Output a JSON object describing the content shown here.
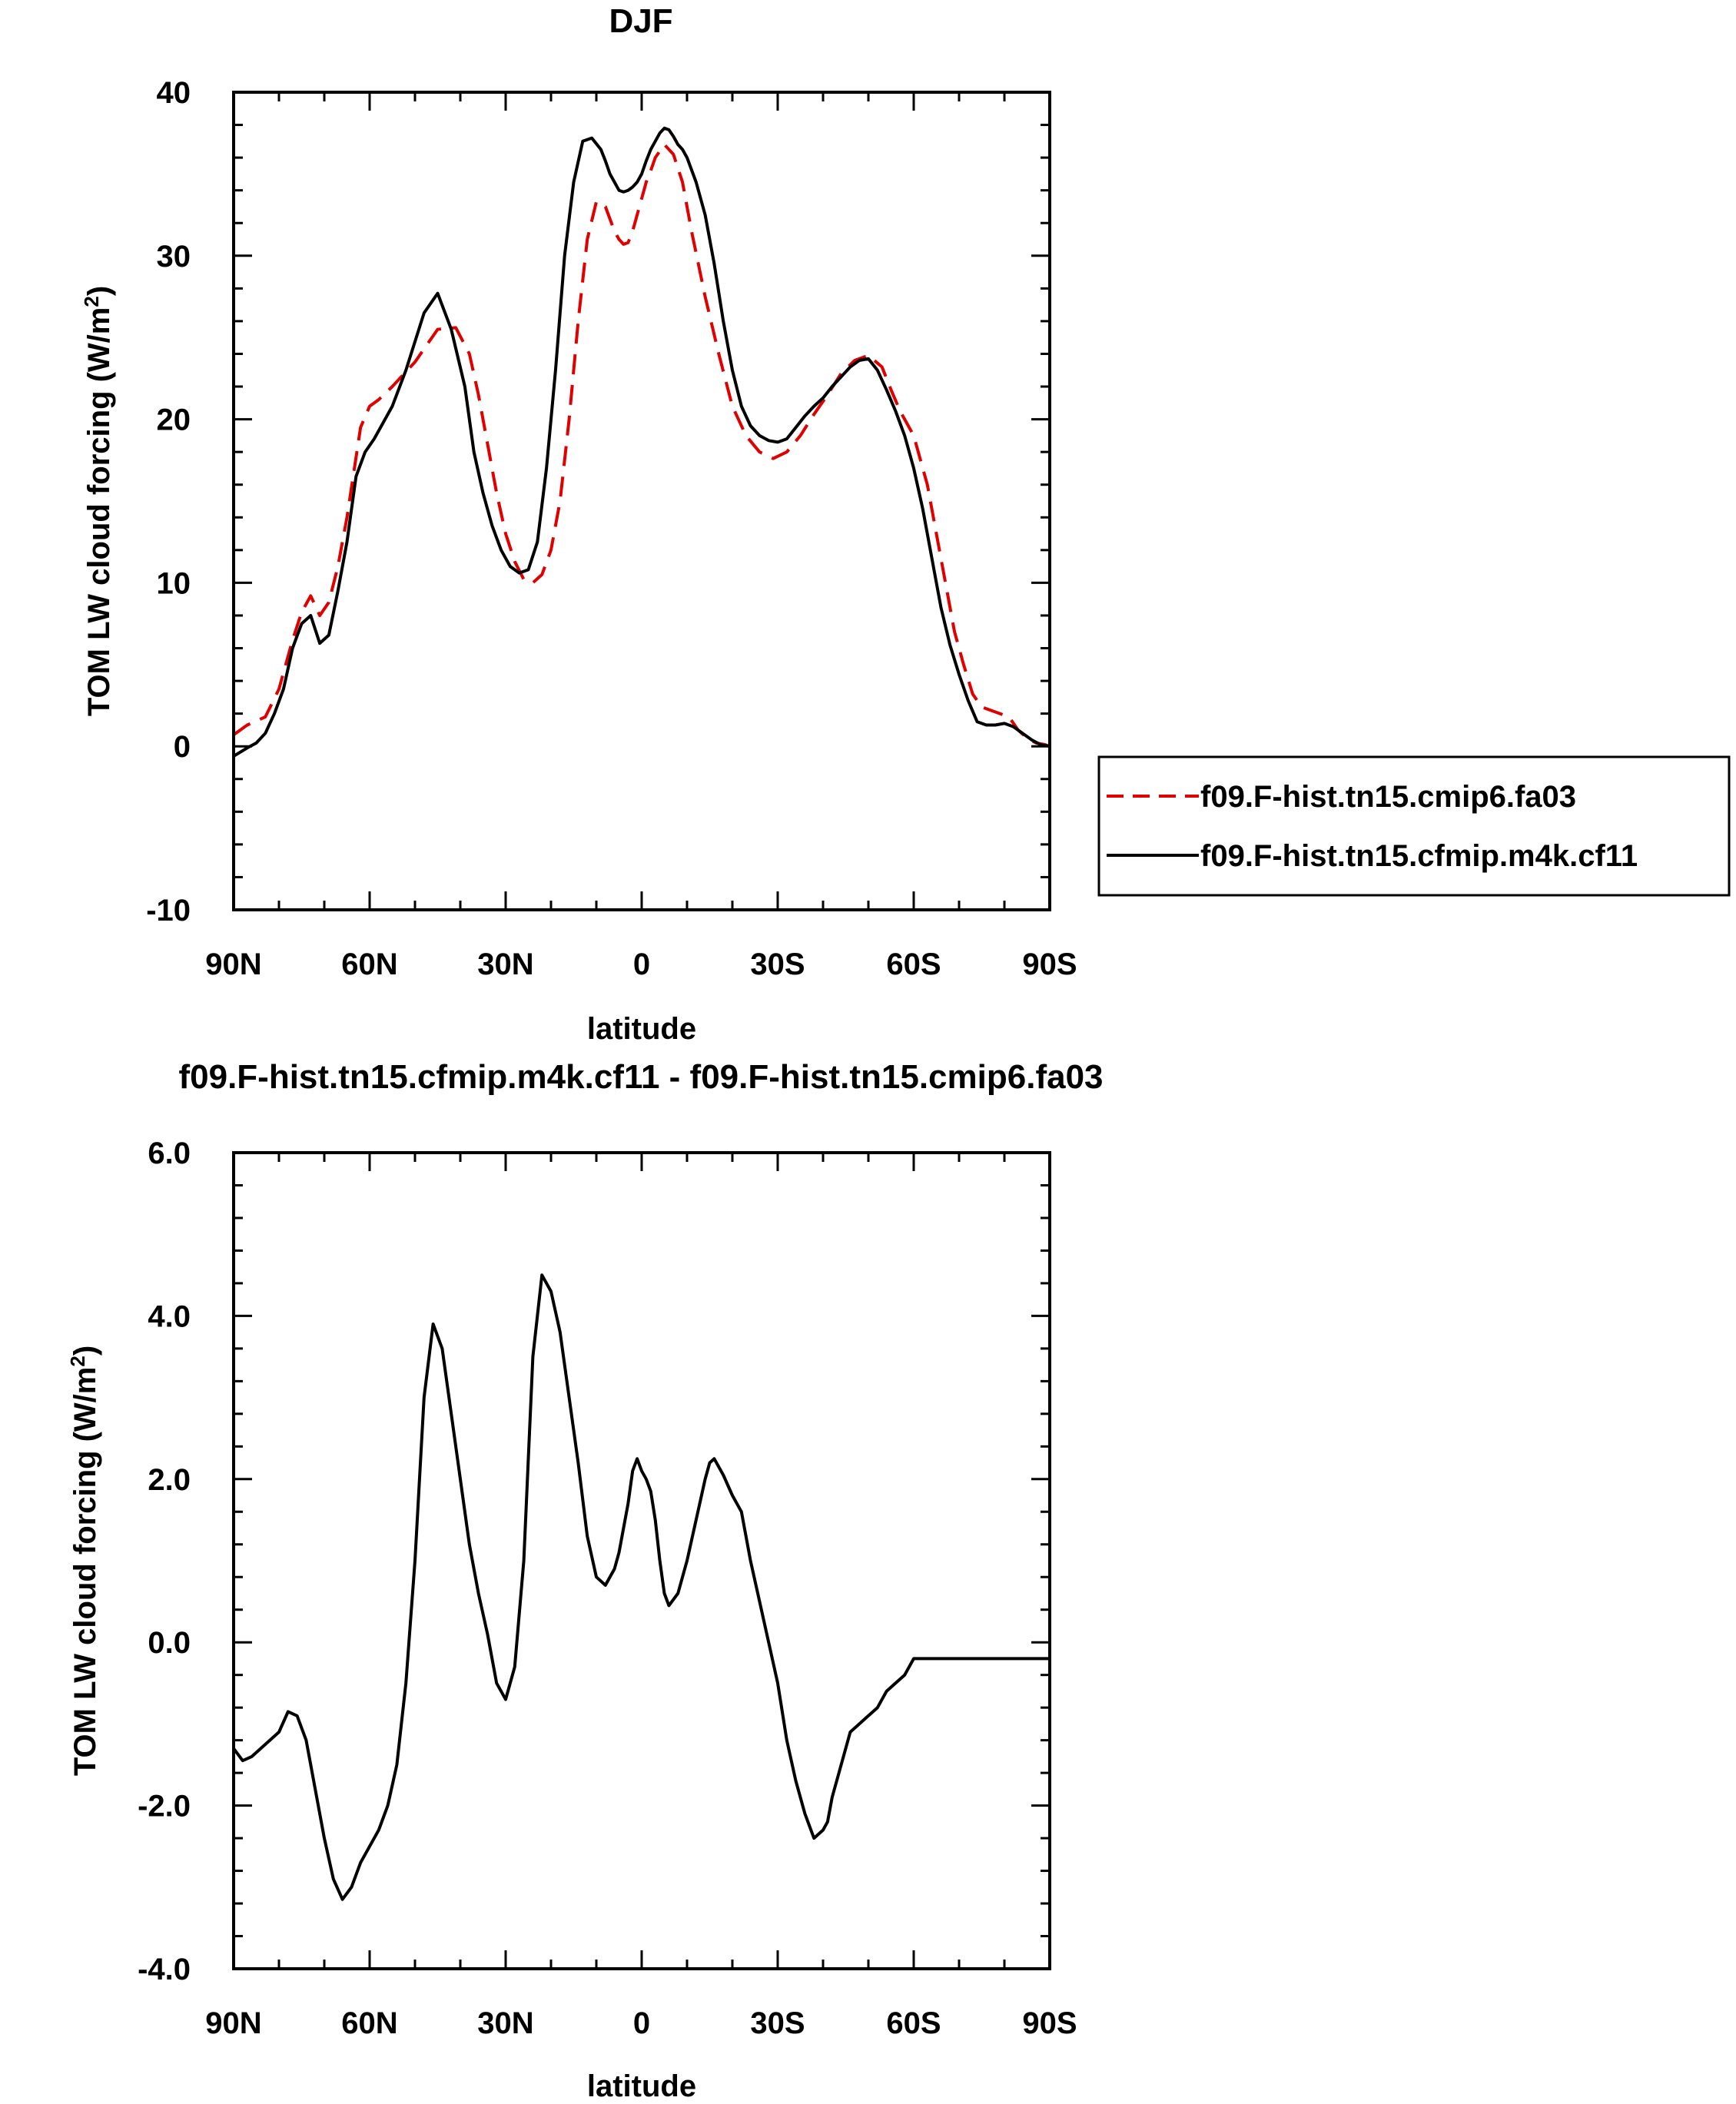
{
  "chart_data": [
    {
      "type": "line",
      "title": "DJF",
      "xlabel": "latitude",
      "ylabel": "TOM LW cloud forcing (W/m2)",
      "ylabel_parts": {
        "main": "TOM LW cloud forcing (W/m",
        "sup": "2",
        "tail": ")"
      },
      "xlim": [
        -90,
        90
      ],
      "ylim": [
        -10,
        40
      ],
      "x_ticks": [
        -90,
        -60,
        -30,
        0,
        30,
        60,
        90
      ],
      "x_tick_labels": [
        "90N",
        "60N",
        "30N",
        "0",
        "30S",
        "60S",
        "90S"
      ],
      "y_ticks": [
        -10,
        0,
        10,
        20,
        30,
        40
      ],
      "y_tick_labels": [
        "-10",
        "0",
        "10",
        "20",
        "30",
        "40"
      ],
      "legend": {
        "position": "right-middle",
        "entries": [
          "f09.F-hist.tn15.cmip6.fa03",
          "f09.F-hist.tn15.cfmip.m4k.cf11"
        ]
      },
      "series": [
        {
          "name": "f09.F-hist.tn15.cmip6.fa03",
          "color": "#e00000",
          "dash": "dashed",
          "x": [
            -90,
            -87,
            -83,
            -80,
            -77,
            -75,
            -73,
            -71,
            -69,
            -67,
            -65,
            -62,
            -60,
            -58,
            -55,
            -50,
            -45,
            -41,
            -38,
            -36,
            -34,
            -32,
            -30,
            -28,
            -26,
            -24,
            -22,
            -20,
            -18,
            -16,
            -14,
            -12,
            -10,
            -8,
            -6,
            -5,
            -4,
            -3,
            -2,
            -1,
            0,
            1,
            2,
            3,
            5,
            7,
            9,
            11,
            14,
            17,
            20,
            23,
            26,
            29,
            32,
            35,
            38,
            41,
            44,
            47,
            50,
            53,
            55,
            57,
            60,
            63,
            65,
            67,
            69,
            71,
            73,
            75,
            77,
            79,
            81,
            83,
            85,
            87,
            89,
            90
          ],
          "y": [
            0.7,
            1.3,
            1.8,
            3.5,
            6.5,
            8.2,
            9.2,
            8.0,
            8.8,
            11.0,
            14.0,
            19.5,
            20.8,
            21.2,
            22.0,
            23.5,
            25.5,
            25.6,
            24.0,
            21.5,
            18.5,
            15.5,
            13.0,
            11.3,
            10.2,
            10.0,
            10.5,
            12.0,
            15.0,
            20.0,
            26.0,
            31.0,
            33.3,
            33.0,
            31.5,
            31.0,
            30.7,
            30.8,
            31.5,
            32.5,
            33.5,
            34.5,
            35.2,
            36.0,
            36.8,
            36.2,
            34.5,
            31.5,
            27.5,
            24.0,
            20.8,
            19.0,
            18.0,
            17.6,
            18.0,
            19.0,
            20.3,
            21.5,
            22.8,
            23.6,
            23.9,
            23.2,
            21.8,
            20.5,
            19.0,
            16.0,
            13.0,
            10.0,
            7.0,
            5.0,
            3.2,
            2.4,
            2.2,
            2.0,
            1.8,
            1.0,
            0.5,
            0.2,
            0.1,
            0.0
          ]
        },
        {
          "name": "f09.F-hist.tn15.cfmip.m4k.cf11",
          "color": "#000000",
          "dash": "solid",
          "x": [
            -90,
            -87,
            -85,
            -83,
            -81,
            -79,
            -77,
            -75,
            -73,
            -71,
            -69,
            -67,
            -65,
            -63,
            -61,
            -59,
            -57,
            -55,
            -52,
            -48,
            -45,
            -42,
            -39,
            -37,
            -35,
            -33,
            -31,
            -29,
            -27,
            -25,
            -23,
            -21,
            -19,
            -17,
            -15,
            -13,
            -11,
            -9,
            -8,
            -7,
            -6,
            -5,
            -4,
            -3,
            -2,
            -1,
            0,
            1,
            2,
            3,
            4,
            5,
            6,
            7,
            8,
            9,
            10,
            12,
            14,
            16,
            18,
            20,
            22,
            24,
            26,
            28,
            30,
            32,
            34,
            36,
            38,
            40,
            42,
            44,
            46,
            48,
            50,
            52,
            54,
            56,
            58,
            60,
            62,
            64,
            66,
            68,
            70,
            72,
            74,
            76,
            78,
            80,
            82,
            84,
            86,
            88,
            90
          ],
          "y": [
            -0.6,
            -0.1,
            0.2,
            0.8,
            2.0,
            3.5,
            6.0,
            7.5,
            8.0,
            6.3,
            6.8,
            9.5,
            12.5,
            16.5,
            18.0,
            18.8,
            19.8,
            20.8,
            23.0,
            26.5,
            27.7,
            25.5,
            22.0,
            18.0,
            15.5,
            13.5,
            12.0,
            11.0,
            10.6,
            10.8,
            12.5,
            17.0,
            23.0,
            30.0,
            34.5,
            37.0,
            37.2,
            36.5,
            35.8,
            35.0,
            34.5,
            34.0,
            33.9,
            34.0,
            34.2,
            34.5,
            35.0,
            35.8,
            36.5,
            37.0,
            37.5,
            37.8,
            37.7,
            37.3,
            36.8,
            36.5,
            36.0,
            34.5,
            32.5,
            29.5,
            26.0,
            23.0,
            20.8,
            19.6,
            19.0,
            18.7,
            18.6,
            18.8,
            19.5,
            20.2,
            20.8,
            21.3,
            22.0,
            22.6,
            23.2,
            23.6,
            23.7,
            23.0,
            21.8,
            20.5,
            19.0,
            17.0,
            14.5,
            11.5,
            8.5,
            6.2,
            4.4,
            2.8,
            1.5,
            1.3,
            1.3,
            1.4,
            1.2,
            0.8,
            0.4,
            0.1,
            0.0
          ]
        }
      ]
    },
    {
      "type": "line",
      "title": "f09.F-hist.tn15.cfmip.m4k.cf11 - f09.F-hist.tn15.cmip6.fa03",
      "xlabel": "latitude",
      "ylabel": "TOM LW cloud forcing (W/m2)",
      "ylabel_parts": {
        "main": "TOM LW cloud forcing (W/m",
        "sup": "2",
        "tail": ")"
      },
      "xlim": [
        -90,
        90
      ],
      "ylim": [
        -4,
        6
      ],
      "x_ticks": [
        -90,
        -60,
        -30,
        0,
        30,
        60,
        90
      ],
      "x_tick_labels": [
        "90N",
        "60N",
        "30N",
        "0",
        "30S",
        "60S",
        "90S"
      ],
      "y_ticks": [
        -4,
        -2,
        0,
        2,
        4,
        6
      ],
      "y_tick_labels": [
        "-4.0",
        "-2.0",
        "0.0",
        "2.0",
        "4.0",
        "6.0"
      ],
      "series": [
        {
          "name": "f09.F-hist.tn15.cfmip.m4k.cf11 - f09.F-hist.tn15.cmip6.fa03",
          "color": "#000000",
          "dash": "solid",
          "x": [
            -90,
            -88,
            -86,
            -84,
            -82,
            -80,
            -78,
            -76,
            -74,
            -72,
            -70,
            -68,
            -66,
            -64,
            -62,
            -60,
            -58,
            -56,
            -54,
            -52,
            -50,
            -48,
            -46,
            -44,
            -42,
            -40,
            -38,
            -36,
            -34,
            -33,
            -32,
            -30,
            -28,
            -26,
            -24,
            -22,
            -20,
            -18,
            -16,
            -14,
            -12,
            -10,
            -8,
            -6,
            -5,
            -4,
            -3,
            -2,
            -1,
            0,
            1,
            2,
            3,
            4,
            5,
            6,
            8,
            10,
            12,
            14,
            15,
            16,
            18,
            20,
            22,
            24,
            26,
            28,
            30,
            32,
            34,
            36,
            38,
            40,
            41,
            42,
            44,
            46,
            48,
            50,
            52,
            54,
            56,
            58,
            60,
            62,
            64,
            66,
            68,
            70,
            72,
            74,
            76,
            78,
            80,
            82,
            84,
            86,
            88,
            90
          ],
          "y": [
            -1.3,
            -1.45,
            -1.4,
            -1.3,
            -1.2,
            -1.1,
            -0.85,
            -0.9,
            -1.2,
            -1.8,
            -2.4,
            -2.9,
            -3.15,
            -3.0,
            -2.7,
            -2.5,
            -2.3,
            -2.0,
            -1.5,
            -0.5,
            1.0,
            3.0,
            3.9,
            3.6,
            2.8,
            2.0,
            1.2,
            0.6,
            0.1,
            -0.2,
            -0.5,
            -0.7,
            -0.3,
            1.0,
            3.5,
            4.5,
            4.3,
            3.8,
            3.0,
            2.2,
            1.3,
            0.8,
            0.7,
            0.9,
            1.1,
            1.4,
            1.7,
            2.1,
            2.25,
            2.1,
            2.0,
            1.85,
            1.5,
            1.0,
            0.6,
            0.45,
            0.6,
            1.0,
            1.5,
            2.0,
            2.2,
            2.25,
            2.05,
            1.8,
            1.6,
            1.0,
            0.5,
            0.0,
            -0.5,
            -1.2,
            -1.7,
            -2.1,
            -2.4,
            -2.3,
            -2.2,
            -1.9,
            -1.5,
            -1.1,
            -1.0,
            -0.9,
            -0.8,
            -0.6,
            -0.5,
            -0.4,
            -0.2,
            -0.2,
            -0.2,
            -0.2,
            -0.2,
            -0.2,
            -0.2,
            -0.2,
            -0.2,
            -0.2,
            -0.2,
            -0.2,
            -0.2,
            -0.2,
            -0.2,
            -0.2
          ]
        }
      ]
    }
  ]
}
